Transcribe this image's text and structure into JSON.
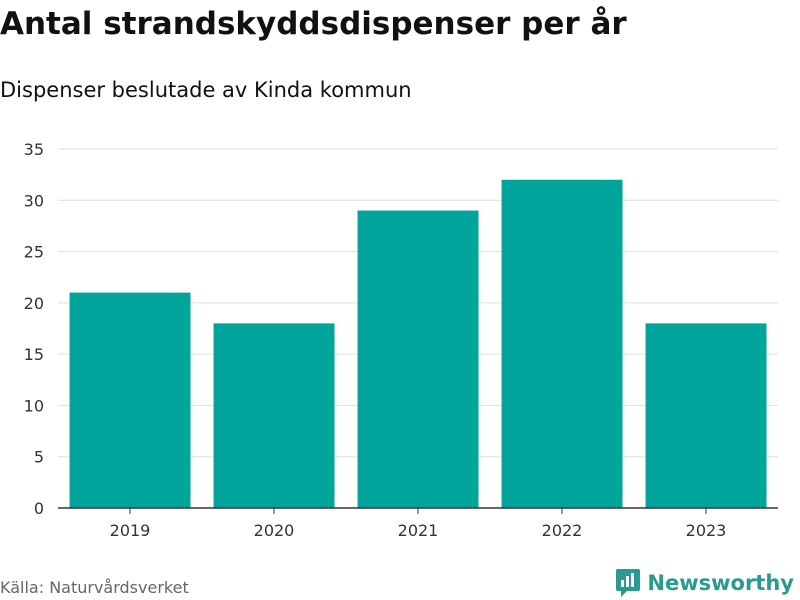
{
  "header": {
    "title": "Antal strandskyddsdispenser per år",
    "subtitle": "Dispenser beslutade av Kinda kommun"
  },
  "footer": {
    "source": "Källa: Naturvårdsverket",
    "brand": "Newsworthy",
    "brand_icon": "bar-chart-logo-icon"
  },
  "colors": {
    "bar": "#00a49a",
    "grid": "#dddddd",
    "axis": "#333333",
    "brand": "#2a9a8f"
  },
  "chart_data": {
    "type": "bar",
    "categories": [
      "2019",
      "2020",
      "2021",
      "2022",
      "2023"
    ],
    "values": [
      21,
      18,
      29,
      32,
      18
    ],
    "ylim": [
      0,
      35
    ],
    "yticks": [
      0,
      5,
      10,
      15,
      20,
      25,
      30,
      35
    ],
    "grid": true,
    "legend": "none"
  }
}
